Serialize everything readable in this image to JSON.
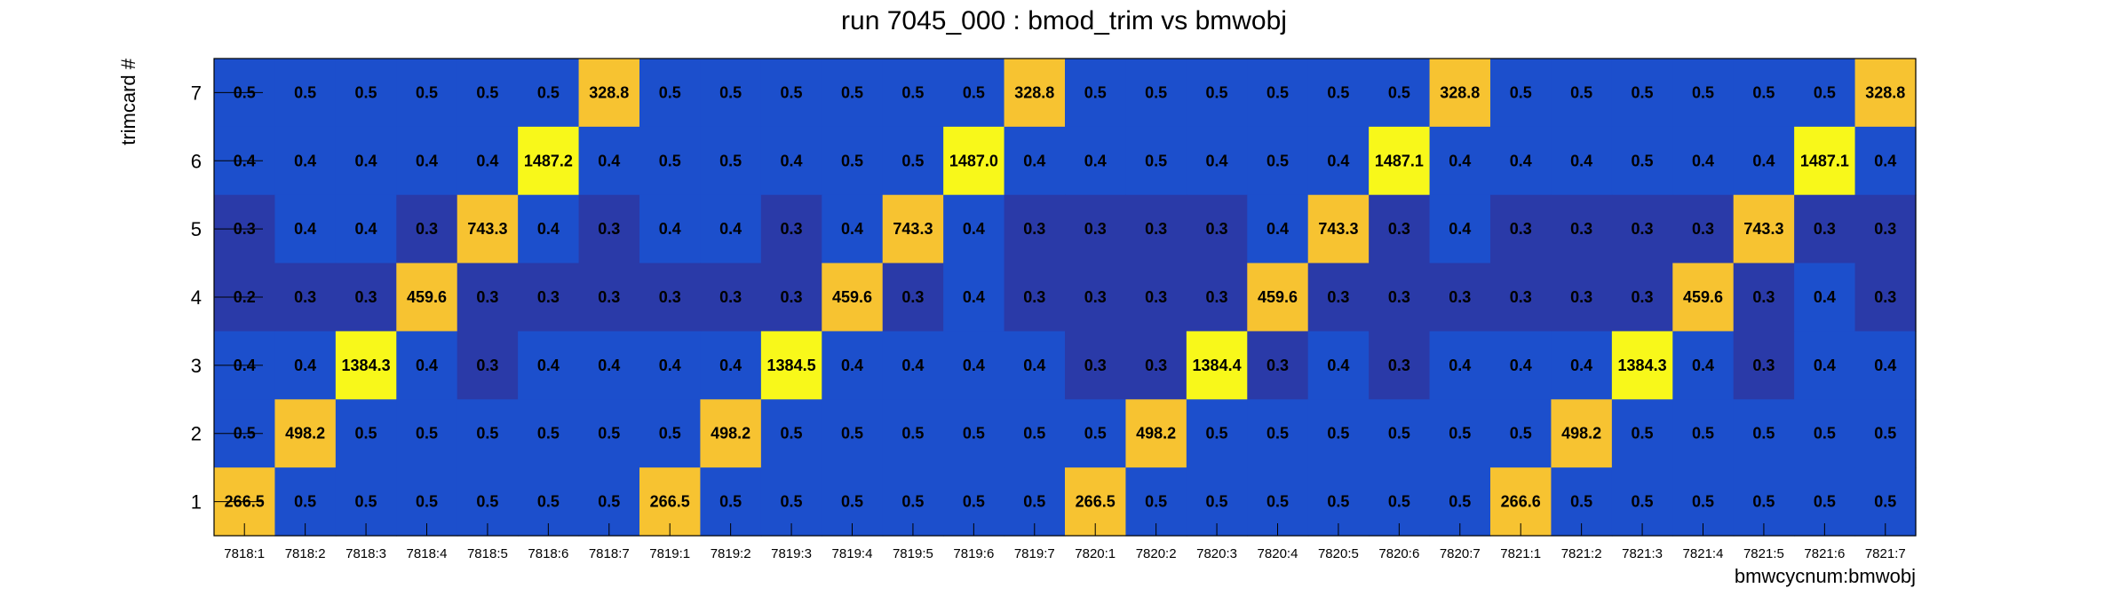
{
  "chart_data": {
    "type": "heatmap",
    "title": "run 7045_000 : bmod_trim vs bmwobj",
    "xlabel": "bmwcycnum:bmwobj",
    "ylabel": "trimcard #",
    "x_categories": [
      "7818:1",
      "7818:2",
      "7818:3",
      "7818:4",
      "7818:5",
      "7818:6",
      "7818:7",
      "7819:1",
      "7819:2",
      "7819:3",
      "7819:4",
      "7819:5",
      "7819:6",
      "7819:7",
      "7820:1",
      "7820:2",
      "7820:3",
      "7820:4",
      "7820:5",
      "7820:6",
      "7820:7",
      "7821:1",
      "7821:2",
      "7821:3",
      "7821:4",
      "7821:5",
      "7821:6",
      "7821:7"
    ],
    "y_categories": [
      "1",
      "2",
      "3",
      "4",
      "5",
      "6",
      "7"
    ],
    "rows": [
      {
        "y": "7",
        "values": [
          "0.5",
          "0.5",
          "0.5",
          "0.5",
          "0.5",
          "0.5",
          "328.8",
          "0.5",
          "0.5",
          "0.5",
          "0.5",
          "0.5",
          "0.5",
          "328.8",
          "0.5",
          "0.5",
          "0.5",
          "0.5",
          "0.5",
          "0.5",
          "328.8",
          "0.5",
          "0.5",
          "0.5",
          "0.5",
          "0.5",
          "0.5",
          "328.8"
        ]
      },
      {
        "y": "6",
        "values": [
          "0.4",
          "0.4",
          "0.4",
          "0.4",
          "0.4",
          "1487.2",
          "0.4",
          "0.5",
          "0.5",
          "0.4",
          "0.5",
          "0.5",
          "1487.0",
          "0.4",
          "0.4",
          "0.5",
          "0.4",
          "0.5",
          "0.4",
          "1487.1",
          "0.4",
          "0.4",
          "0.4",
          "0.5",
          "0.4",
          "0.4",
          "1487.1",
          "0.4"
        ]
      },
      {
        "y": "5",
        "values": [
          "0.3",
          "0.4",
          "0.4",
          "0.3",
          "743.3",
          "0.4",
          "0.3",
          "0.4",
          "0.4",
          "0.3",
          "0.4",
          "743.3",
          "0.4",
          "0.3",
          "0.3",
          "0.3",
          "0.3",
          "0.4",
          "743.3",
          "0.3",
          "0.4",
          "0.3",
          "0.3",
          "0.3",
          "0.3",
          "743.3",
          "0.3",
          "0.3"
        ]
      },
      {
        "y": "4",
        "values": [
          "0.2",
          "0.3",
          "0.3",
          "459.6",
          "0.3",
          "0.3",
          "0.3",
          "0.3",
          "0.3",
          "0.3",
          "459.6",
          "0.3",
          "0.4",
          "0.3",
          "0.3",
          "0.3",
          "0.3",
          "459.6",
          "0.3",
          "0.3",
          "0.3",
          "0.3",
          "0.3",
          "0.3",
          "459.6",
          "0.3",
          "0.4",
          "0.3"
        ]
      },
      {
        "y": "3",
        "values": [
          "0.4",
          "0.4",
          "1384.3",
          "0.4",
          "0.3",
          "0.4",
          "0.4",
          "0.4",
          "0.4",
          "1384.5",
          "0.4",
          "0.4",
          "0.4",
          "0.4",
          "0.3",
          "0.3",
          "1384.4",
          "0.3",
          "0.4",
          "0.3",
          "0.4",
          "0.4",
          "0.4",
          "1384.3",
          "0.4",
          "0.3",
          "0.4",
          "0.4"
        ]
      },
      {
        "y": "2",
        "values": [
          "0.5",
          "498.2",
          "0.5",
          "0.5",
          "0.5",
          "0.5",
          "0.5",
          "0.5",
          "498.2",
          "0.5",
          "0.5",
          "0.5",
          "0.5",
          "0.5",
          "0.5",
          "498.2",
          "0.5",
          "0.5",
          "0.5",
          "0.5",
          "0.5",
          "0.5",
          "498.2",
          "0.5",
          "0.5",
          "0.5",
          "0.5",
          "0.5"
        ]
      },
      {
        "y": "1",
        "values": [
          "266.5",
          "0.5",
          "0.5",
          "0.5",
          "0.5",
          "0.5",
          "0.5",
          "266.5",
          "0.5",
          "0.5",
          "0.5",
          "0.5",
          "0.5",
          "0.5",
          "266.5",
          "0.5",
          "0.5",
          "0.5",
          "0.5",
          "0.5",
          "0.5",
          "266.6",
          "0.5",
          "0.5",
          "0.5",
          "0.5",
          "0.5",
          "0.5"
        ]
      }
    ],
    "colors": {
      "low_dark": "#2a3aa8",
      "low": "#1c4fcc",
      "high_orange": "#f7c331",
      "high_yellow": "#f8f81a"
    },
    "grid": false,
    "legend": "none"
  }
}
